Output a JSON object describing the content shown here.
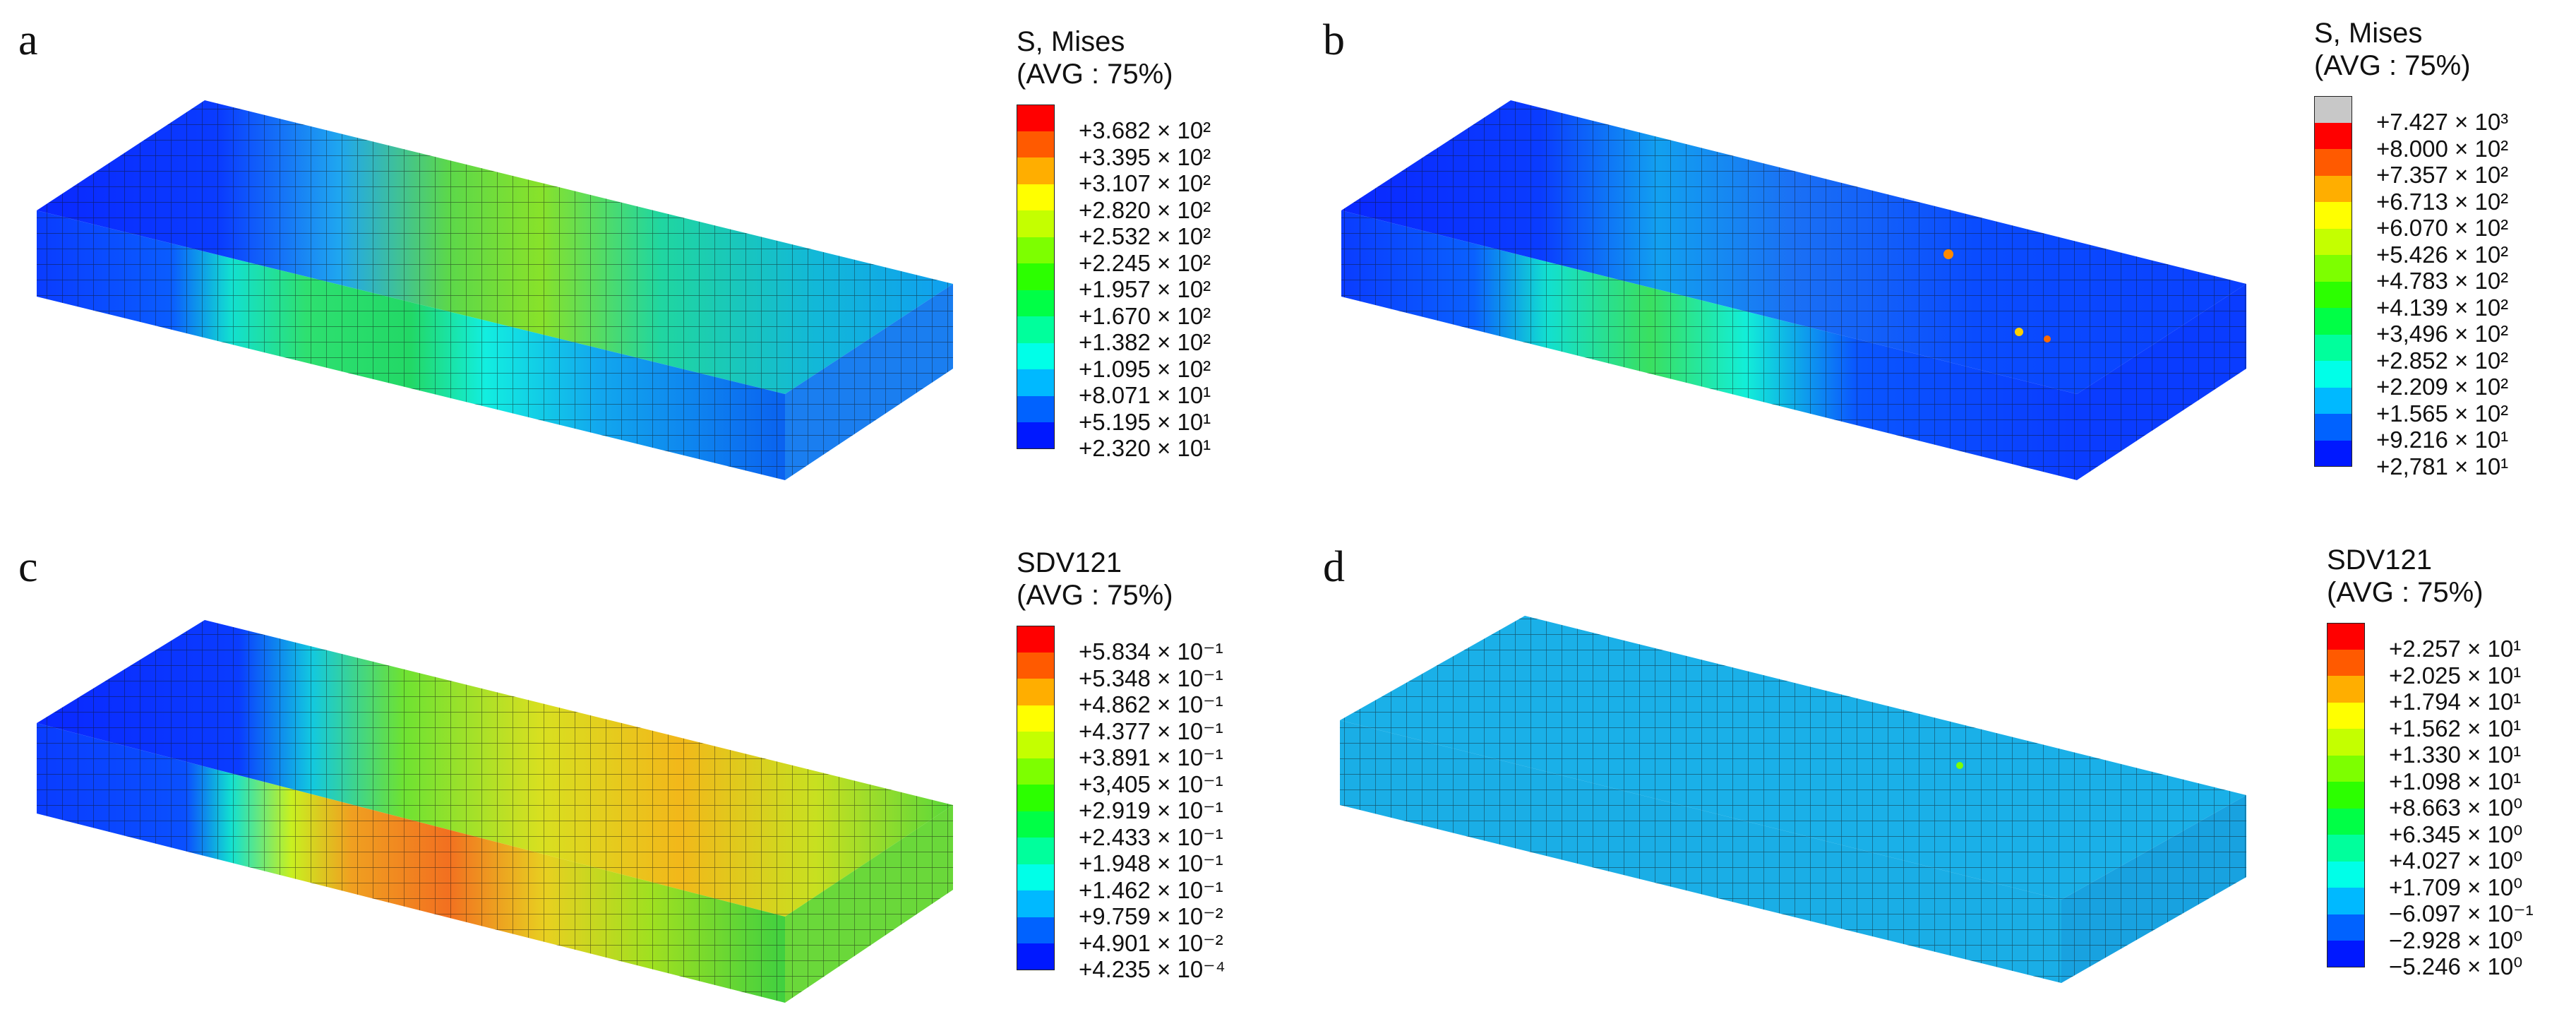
{
  "panels": [
    {
      "letter": "a",
      "legend": {
        "title": "S, Mises",
        "subtitle": "(AVG : 75%)",
        "values": [
          "+3.682 × 10²",
          "+3.395 × 10²",
          "+3.107 × 10²",
          "+2.820 × 10²",
          "+2.532 × 10²",
          "+2.245 × 10²",
          "+1.957 × 10²",
          "+1.670 × 10²",
          "+1.382 × 10²",
          "+1.095 × 10²",
          "+8.071 × 10¹",
          "+5.195 × 10¹",
          "+2.320 × 10¹"
        ],
        "colors": [
          "#ff0000",
          "#ff5a00",
          "#ffae00",
          "#ffff00",
          "#c4ff00",
          "#7dff00",
          "#2cff00",
          "#00ff46",
          "#00ff9c",
          "#00ffe8",
          "#00b9ff",
          "#0062ff",
          "#0018ff"
        ]
      }
    },
    {
      "letter": "b",
      "legend": {
        "title": "S, Mises",
        "subtitle": "(AVG : 75%)",
        "values": [
          "+7.427 × 10³",
          "+8.000 × 10²",
          "+7.357 × 10²",
          "+6.713 × 10²",
          "+6.070 × 10²",
          "+5.426 × 10²",
          "+4.783 × 10²",
          "+4.139 × 10²",
          "+3,496 × 10²",
          "+2.852 × 10²",
          "+2.209 × 10²",
          "+1.565 × 10²",
          "+9.216 × 10¹",
          "+2,781 × 10¹"
        ],
        "colors": [
          "#c8c8c8",
          "#ff0000",
          "#ff5a00",
          "#ffae00",
          "#ffff00",
          "#c4ff00",
          "#7dff00",
          "#2cff00",
          "#00ff46",
          "#00ff9c",
          "#00ffe8",
          "#00b9ff",
          "#0062ff",
          "#0018ff"
        ]
      }
    },
    {
      "letter": "c",
      "legend": {
        "title": "SDV121",
        "subtitle": "(AVG : 75%)",
        "values": [
          "+5.834 × 10⁻¹",
          "+5.348 × 10⁻¹",
          "+4.862 × 10⁻¹",
          "+4.377 × 10⁻¹",
          "+3.891 × 10⁻¹",
          "+3,405 × 10⁻¹",
          "+2.919 × 10⁻¹",
          "+2.433 × 10⁻¹",
          "+1.948 × 10⁻¹",
          "+1.462 × 10⁻¹",
          "+9.759 × 10⁻²",
          "+4.901 × 10⁻²",
          "+4.235 × 10⁻⁴"
        ],
        "colors": [
          "#ff0000",
          "#ff5a00",
          "#ffae00",
          "#ffff00",
          "#c4ff00",
          "#7dff00",
          "#2cff00",
          "#00ff46",
          "#00ff9c",
          "#00ffe8",
          "#00b9ff",
          "#0062ff",
          "#0018ff"
        ]
      }
    },
    {
      "letter": "d",
      "legend": {
        "title": "SDV121",
        "subtitle": "(AVG : 75%)",
        "values": [
          "+2.257 × 10¹",
          "+2.025 × 10¹",
          "+1.794 × 10¹",
          "+1.562 × 10¹",
          "+1.330 × 10¹",
          "+1.098 × 10¹",
          "+8.663 × 10⁰",
          "+6.345 × 10⁰",
          "+4.027 × 10⁰",
          "+1.709 × 10⁰",
          "−6.097 × 10⁻¹",
          "−2.928 × 10⁰",
          "−5.246 × 10⁰"
        ],
        "colors": [
          "#ff0000",
          "#ff5a00",
          "#ffae00",
          "#ffff00",
          "#c4ff00",
          "#7dff00",
          "#2cff00",
          "#00ff46",
          "#00ff9c",
          "#00ffe8",
          "#00b9ff",
          "#0062ff",
          "#0018ff"
        ]
      }
    }
  ]
}
